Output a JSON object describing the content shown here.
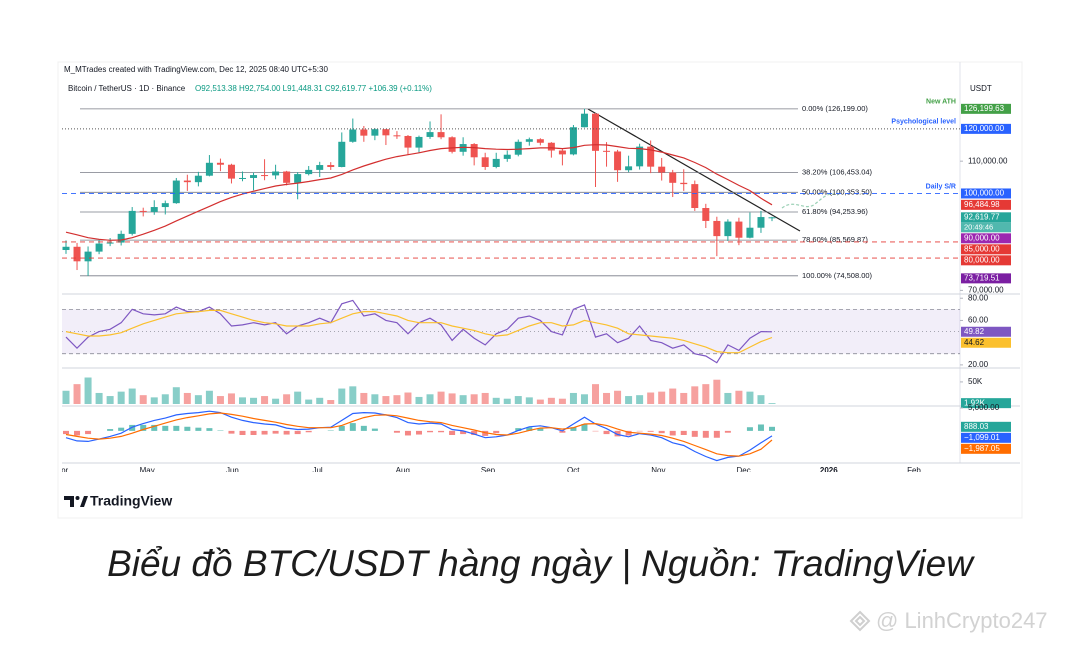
{
  "credit": "M_MTrades created with TradingView.com, Dec 12, 2025 08:40 UTC+5:30",
  "currency": "USDT",
  "logo": "TradingView",
  "caption": "Biểu đồ BTC/USDT hàng ngày | Nguồn: TradingView",
  "watermark": "@ LinhCrypto247",
  "chart_data": [
    {
      "type": "candlestick",
      "title": "Bitcoin / TetherUS · 1D · Binance",
      "subtitle": "O92,513.38 H92,754.00 L91,448.31 C92,619.77 +106.39 (+0.11%)",
      "xtick_labels": [
        "Apr",
        "May",
        "Jun",
        "Jul",
        "Aug",
        "Sep",
        "Oct",
        "Nov",
        "Dec",
        "2026",
        "Feb"
      ],
      "open": [
        82500,
        83500,
        79000,
        82000,
        84500,
        84800,
        87500,
        94600,
        94300,
        95800,
        97000,
        104000,
        103500,
        105500,
        109500,
        108900,
        104600,
        104800,
        105700,
        105600,
        106800,
        103300,
        106000,
        107300,
        108800,
        108200,
        116000,
        119800,
        117900,
        119900,
        118000,
        117800,
        114200,
        117500,
        119000,
        117400,
        112900,
        115300,
        111200,
        108200,
        110700,
        112000,
        116000,
        116800,
        115700,
        113300,
        112100,
        120500,
        124700,
        113200,
        113000,
        107200,
        108400,
        114500,
        108300,
        106500,
        103300,
        102900,
        95500,
        91500,
        86800,
        91300,
        86300,
        89400,
        92513.38
      ],
      "high": [
        85500,
        84700,
        83600,
        85800,
        86200,
        88500,
        95800,
        95600,
        97900,
        97800,
        104800,
        105800,
        106700,
        111900,
        110800,
        109200,
        106800,
        106500,
        110600,
        108900,
        107000,
        106600,
        108500,
        109800,
        109700,
        118900,
        123200,
        120900,
        120200,
        120000,
        119300,
        118100,
        117900,
        122300,
        124500,
        117700,
        117400,
        115600,
        112600,
        112600,
        113300,
        116700,
        117300,
        117100,
        115900,
        113900,
        121200,
        126199,
        124900,
        115900,
        113500,
        111700,
        115400,
        116400,
        111000,
        107300,
        107500,
        104000,
        96800,
        92800,
        92000,
        92500,
        94100,
        94600,
        92754
      ],
      "low": [
        81300,
        76300,
        74508,
        81200,
        83700,
        83900,
        87000,
        92900,
        93400,
        93500,
        96800,
        100800,
        102200,
        105300,
        106900,
        103100,
        103800,
        101000,
        104100,
        104400,
        102500,
        98200,
        105600,
        105100,
        107300,
        108100,
        115700,
        116000,
        116500,
        115000,
        116900,
        111900,
        112700,
        116900,
        116800,
        112400,
        111700,
        108700,
        107300,
        107800,
        109800,
        111500,
        114800,
        114900,
        111100,
        108700,
        111800,
        120400,
        102000,
        108300,
        103600,
        106600,
        107400,
        106300,
        104000,
        98900,
        100800,
        94600,
        89300,
        80600,
        85300,
        84000,
        86100,
        87800,
        91448.31
      ],
      "close": [
        83500,
        79000,
        82000,
        84500,
        84800,
        87500,
        94600,
        94300,
        95800,
        97000,
        104000,
        103500,
        105500,
        109500,
        108900,
        104600,
        104800,
        105700,
        105600,
        106800,
        103300,
        106000,
        107300,
        108800,
        108200,
        116000,
        119800,
        117900,
        119900,
        118000,
        117800,
        114200,
        117500,
        119000,
        117400,
        112900,
        115300,
        111200,
        108200,
        110700,
        112000,
        116000,
        116800,
        115700,
        113300,
        112100,
        120500,
        124700,
        113200,
        113000,
        107200,
        108400,
        114500,
        108300,
        106500,
        103300,
        102900,
        95500,
        91500,
        86800,
        91300,
        86300,
        89400,
        92700,
        92619.77
      ],
      "up_color": "#26a69a",
      "down_color": "#ef5350",
      "series": [
        {
          "color": "#d32f2f",
          "values": [
            88000,
            87200,
            86300,
            85800,
            85500,
            85600,
            86300,
            87400,
            88600,
            89900,
            91500,
            93000,
            94500,
            96000,
            97500,
            98800,
            99800,
            100700,
            101500,
            102300,
            102800,
            103200,
            103700,
            104300,
            104800,
            105900,
            107300,
            108500,
            109600,
            110600,
            111400,
            112000,
            112600,
            113300,
            113900,
            114100,
            114300,
            114200,
            113900,
            113700,
            113600,
            113700,
            113900,
            114100,
            114100,
            113900,
            114200,
            114900,
            115100,
            115000,
            114500,
            114000,
            113900,
            113500,
            112800,
            111900,
            111000,
            109600,
            108000,
            106000,
            104300,
            102500,
            100900,
            98500,
            96485
          ]
        }
      ],
      "fib": [
        {
          "value": 126199,
          "label": "0.00% (126,199.00)"
        },
        {
          "value": 106453.04,
          "label": "38.20% (106,453.04)"
        },
        {
          "value": 100353.5,
          "label": "50.00% (100,353.50)"
        },
        {
          "value": 94253.96,
          "label": "61.80% (94,253.96)"
        },
        {
          "value": 85569.87,
          "label": "78.60% (85,569.87)"
        },
        {
          "value": 74508,
          "label": "100.00% (74,508.00)"
        }
      ],
      "ylim": [
        69500,
        140700
      ],
      "yticks": [
        {
          "value": 110000,
          "label": "110,000.00"
        },
        {
          "value": 70000,
          "label": "70,000.00"
        }
      ],
      "badges": [
        {
          "value": 126199.63,
          "label": "126,199.63",
          "color": "#43a047",
          "note": "New ATH"
        },
        {
          "value": 120000,
          "label": "120,000.00",
          "color": "#2962ff",
          "note": "Psychological level",
          "line": "dotted",
          "line_color": "#555555"
        },
        {
          "value": 100000,
          "label": "100,000.00",
          "color": "#2962ff",
          "note": "Daily S/R",
          "line": "dashed",
          "line_color": "#2962ff"
        },
        {
          "value": 96484.98,
          "label": "96,484.98",
          "color": "#e53935"
        },
        {
          "value": 92619.77,
          "label": "92,619.77",
          "color": "#26a69a",
          "sub": "20:49:46"
        },
        {
          "value": 90000,
          "label": "90,000.00",
          "color": "#9c27b0"
        },
        {
          "value": 85000,
          "label": "85,000.00",
          "color": "#e53935",
          "line": "dashed",
          "line_color": "#e53935"
        },
        {
          "value": 80000,
          "label": "80,000.00",
          "color": "#e53935",
          "line": "dashed",
          "line_color": "#e53935"
        },
        {
          "value": 73719.51,
          "label": "73,719.51",
          "color": "#7b1fa2"
        }
      ]
    },
    {
      "type": "line",
      "band": [
        30,
        70
      ],
      "band_color": "#7e57c2",
      "midline": 50,
      "series": [
        {
          "color": "#7e57c2",
          "values": [
            45,
            35,
            45,
            50,
            52,
            58,
            70,
            66,
            65,
            66,
            72,
            68,
            68,
            72,
            66,
            55,
            56,
            58,
            56,
            58,
            48,
            55,
            58,
            62,
            58,
            75,
            78,
            64,
            66,
            60,
            58,
            48,
            58,
            62,
            56,
            42,
            52,
            44,
            38,
            48,
            52,
            62,
            64,
            60,
            50,
            47,
            70,
            74,
            45,
            48,
            40,
            44,
            55,
            42,
            40,
            35,
            38,
            30,
            28,
            22,
            38,
            33,
            44,
            50,
            49.82
          ]
        },
        {
          "color": "#fbc02d",
          "values": [
            50,
            48,
            46,
            46,
            47,
            49,
            53,
            57,
            60,
            63,
            66,
            67,
            68,
            69,
            69,
            66,
            63,
            60,
            58,
            57,
            55,
            55,
            55,
            57,
            58,
            62,
            66,
            68,
            68,
            66,
            64,
            60,
            58,
            58,
            58,
            55,
            53,
            51,
            48,
            46,
            47,
            51,
            55,
            58,
            58,
            55,
            56,
            60,
            58,
            56,
            53,
            48,
            47,
            46,
            45,
            44,
            42,
            39,
            36,
            32,
            31,
            31,
            36,
            41,
            44.62
          ]
        }
      ],
      "ylim": [
        19,
        82
      ],
      "yticks": [
        {
          "value": 80,
          "label": "80.00"
        },
        {
          "value": 60,
          "label": "60.00"
        },
        {
          "value": 20,
          "label": "20.00"
        }
      ],
      "badges": [
        {
          "value": 49.82,
          "label": "49.82",
          "color": "#7e57c2"
        },
        {
          "value": 44.62,
          "label": "44.62",
          "color": "#fbc02d"
        }
      ]
    },
    {
      "type": "bar",
      "values": [
        30000,
        45000,
        60000,
        25000,
        18000,
        28000,
        35000,
        20000,
        15000,
        22000,
        38000,
        25000,
        20000,
        30000,
        18000,
        24000,
        15000,
        14000,
        18000,
        12000,
        22000,
        28000,
        10000,
        14000,
        9000,
        35000,
        40000,
        25000,
        22000,
        18000,
        20000,
        26000,
        16000,
        22000,
        28000,
        24000,
        20000,
        22000,
        25000,
        14000,
        12000,
        18000,
        15000,
        10000,
        14000,
        12000,
        25000,
        22000,
        45000,
        25000,
        30000,
        18000,
        20000,
        26000,
        28000,
        35000,
        25000,
        40000,
        45000,
        55000,
        25000,
        30000,
        28000,
        20000,
        1920
      ],
      "ylim": [
        0,
        77000
      ],
      "yticks": [
        {
          "value": 50000,
          "label": "50K"
        }
      ],
      "badges": [
        {
          "value": 1920,
          "label": "1.92K",
          "color": "#26a69a"
        }
      ]
    },
    {
      "type": "macd",
      "histogram": [
        -700,
        -1000,
        -700,
        0,
        400,
        700,
        1300,
        1300,
        1300,
        1100,
        1100,
        900,
        700,
        600,
        100,
        -600,
        -900,
        -900,
        -800,
        -600,
        -800,
        -700,
        -300,
        0,
        100,
        1100,
        1700,
        1100,
        500,
        0,
        -400,
        -1000,
        -800,
        -300,
        -300,
        -900,
        -700,
        -900,
        -1100,
        -500,
        0,
        600,
        800,
        500,
        0,
        -400,
        800,
        1500,
        -100,
        -700,
        -1200,
        -1000,
        -100,
        -200,
        -500,
        -1000,
        -900,
        -1300,
        -1500,
        -1500,
        -400,
        0,
        800,
        1400,
        888.03
      ],
      "histogram_colors": [
        "#26a69a",
        "#ef5350"
      ],
      "series": [
        {
          "color": "#2962ff",
          "values": [
            -1500,
            -2200,
            -2300,
            -1800,
            -1200,
            -500,
            800,
            1600,
            2300,
            2800,
            3500,
            3800,
            4000,
            4300,
            4000,
            3000,
            2300,
            1800,
            1500,
            1300,
            600,
            300,
            400,
            700,
            800,
            2300,
            3800,
            4000,
            3900,
            3500,
            2900,
            1800,
            1500,
            1700,
            1500,
            300,
            0,
            -700,
            -1500,
            -1300,
            -900,
            100,
            900,
            1100,
            700,
            0,
            1500,
            3000,
            1500,
            500,
            -800,
            -1300,
            -600,
            -900,
            -1500,
            -2600,
            -3200,
            -4500,
            -5600,
            -6500,
            -5800,
            -5500,
            -4200,
            -2600,
            -1099.01
          ]
        },
        {
          "color": "#ff6d00",
          "values": [
            -800,
            -1200,
            -1600,
            -1800,
            -1600,
            -1200,
            -500,
            300,
            1000,
            1700,
            2400,
            2900,
            3300,
            3700,
            3900,
            3600,
            3200,
            2700,
            2300,
            1900,
            1400,
            1000,
            700,
            700,
            700,
            1200,
            2100,
            2900,
            3400,
            3500,
            3300,
            2800,
            2300,
            2000,
            1800,
            1200,
            700,
            200,
            -400,
            -800,
            -900,
            -500,
            100,
            600,
            700,
            400,
            700,
            1500,
            1600,
            1200,
            400,
            -300,
            -500,
            -700,
            -1000,
            -1600,
            -2300,
            -3200,
            -4100,
            -5000,
            -5400,
            -5500,
            -5000,
            -4000,
            -1987.05
          ]
        }
      ],
      "ylim": [
        -6800,
        5000
      ],
      "yticks": [
        {
          "value": 5000,
          "label": "5,000.00"
        }
      ],
      "badges": [
        {
          "value": 888.03,
          "label": "888.03",
          "color": "#26a69a"
        },
        {
          "value": -1099.01,
          "label": "−1,099.01",
          "color": "#2962ff"
        },
        {
          "value": -1987.05,
          "label": "−1,987.05",
          "color": "#ff6d00"
        }
      ]
    }
  ]
}
